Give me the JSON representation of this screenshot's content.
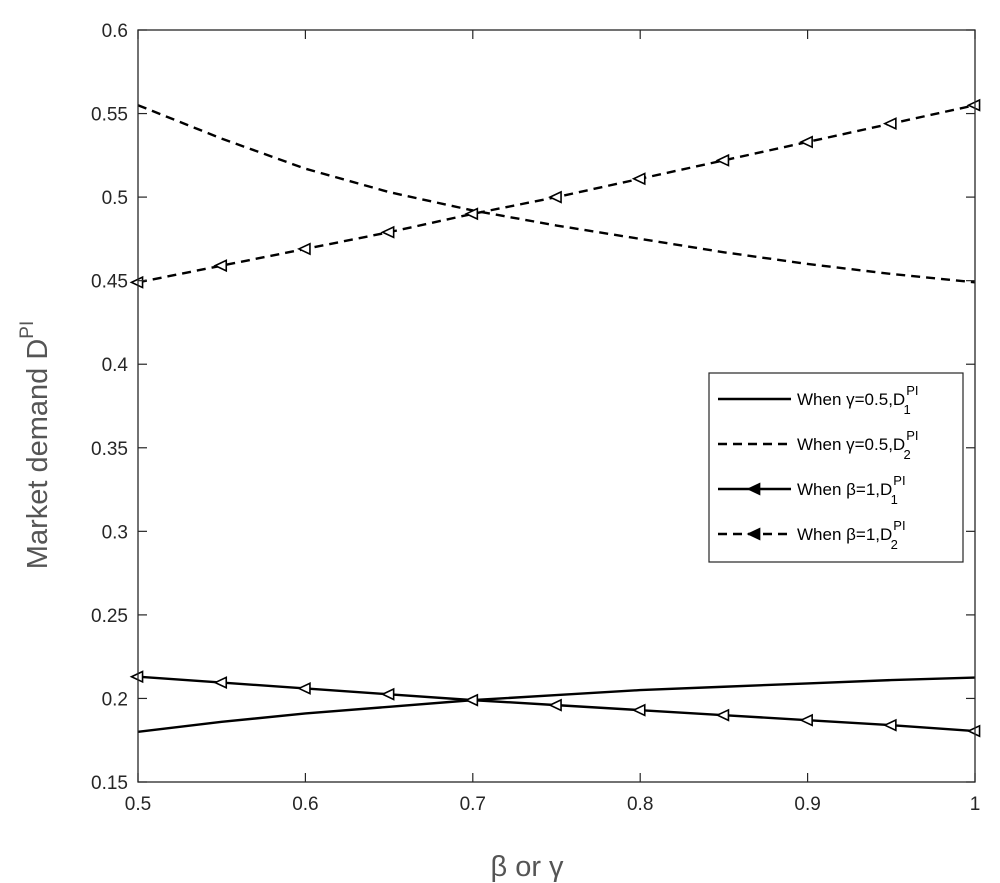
{
  "chart_data": {
    "type": "line",
    "xlabel": "β or γ",
    "ylabel_main": "Market demand D",
    "ylabel_sup": "PI",
    "xlim": [
      0.5,
      1.0
    ],
    "ylim": [
      0.15,
      0.6
    ],
    "xticks": [
      0.5,
      0.6,
      0.7,
      0.8,
      0.9,
      1.0
    ],
    "xtick_labels": [
      "0.5",
      "0.6",
      "0.7",
      "0.8",
      "0.9",
      "1"
    ],
    "yticks": [
      0.15,
      0.2,
      0.25,
      0.3,
      0.35,
      0.4,
      0.45,
      0.5,
      0.55,
      0.6
    ],
    "ytick_labels": [
      "0.15",
      "0.2",
      "0.25",
      "0.3",
      "0.35",
      "0.4",
      "0.45",
      "0.5",
      "0.55",
      "0.6"
    ],
    "grid": false,
    "legend_position": "center-right",
    "series": [
      {
        "name_text": "When γ=0.5,D",
        "name_sup": "PI",
        "name_sub": "1",
        "style": "solid",
        "marker": "none",
        "x": [
          0.5,
          0.55,
          0.6,
          0.65,
          0.7,
          0.75,
          0.8,
          0.85,
          0.9,
          0.95,
          1.0
        ],
        "y": [
          0.18,
          0.186,
          0.191,
          0.195,
          0.199,
          0.202,
          0.205,
          0.207,
          0.209,
          0.211,
          0.2125
        ]
      },
      {
        "name_text": "When γ=0.5,D",
        "name_sup": "PI",
        "name_sub": "2",
        "style": "dashed",
        "marker": "none",
        "x": [
          0.5,
          0.55,
          0.6,
          0.65,
          0.7,
          0.75,
          0.8,
          0.85,
          0.9,
          0.95,
          1.0
        ],
        "y": [
          0.555,
          0.535,
          0.517,
          0.503,
          0.492,
          0.483,
          0.475,
          0.467,
          0.46,
          0.454,
          0.449
        ]
      },
      {
        "name_text": "When β=1,D",
        "name_sup": "PI",
        "name_sub": "1",
        "style": "solid",
        "marker": "triangle-left",
        "x": [
          0.5,
          0.55,
          0.6,
          0.65,
          0.7,
          0.75,
          0.8,
          0.85,
          0.9,
          0.95,
          1.0
        ],
        "y": [
          0.213,
          0.2095,
          0.206,
          0.2025,
          0.199,
          0.196,
          0.193,
          0.19,
          0.187,
          0.184,
          0.1805
        ]
      },
      {
        "name_text": "When β=1,D",
        "name_sup": "PI",
        "name_sub": "2",
        "style": "dashed",
        "marker": "triangle-left",
        "x": [
          0.5,
          0.55,
          0.6,
          0.65,
          0.7,
          0.75,
          0.8,
          0.85,
          0.9,
          0.95,
          1.0
        ],
        "y": [
          0.449,
          0.459,
          0.469,
          0.479,
          0.49,
          0.5,
          0.511,
          0.522,
          0.533,
          0.544,
          0.555
        ]
      }
    ]
  }
}
